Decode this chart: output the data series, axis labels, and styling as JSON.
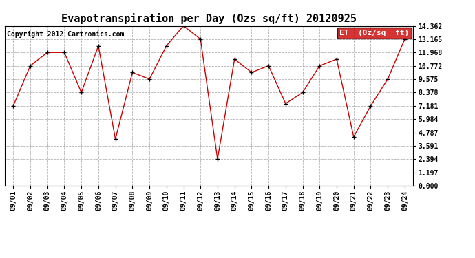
{
  "title": "Evapotranspiration per Day (Ozs sq/ft) 20120925",
  "copyright": "Copyright 2012 Cartronics.com",
  "legend_label": "ET  (0z/sq  ft)",
  "dates": [
    "09/01",
    "09/02",
    "09/03",
    "09/04",
    "09/05",
    "09/06",
    "09/07",
    "09/08",
    "09/09",
    "09/10",
    "09/11",
    "09/12",
    "09/13",
    "09/14",
    "09/15",
    "09/16",
    "09/17",
    "09/18",
    "09/19",
    "09/20",
    "09/21",
    "09/22",
    "09/23",
    "09/24"
  ],
  "values": [
    7.181,
    10.772,
    11.968,
    11.968,
    8.378,
    12.565,
    4.19,
    10.175,
    9.575,
    12.565,
    14.362,
    13.165,
    2.394,
    11.37,
    10.175,
    10.772,
    7.38,
    8.378,
    10.772,
    11.37,
    4.39,
    7.181,
    9.575,
    13.165
  ],
  "ylim": [
    0,
    14.362
  ],
  "yticks": [
    0.0,
    1.197,
    2.394,
    3.591,
    4.787,
    5.984,
    7.181,
    8.378,
    9.575,
    10.772,
    11.968,
    13.165,
    14.362
  ],
  "line_color": "#cc0000",
  "marker_color": "black",
  "background_color": "#ffffff",
  "plot_bg_color": "#ffffff",
  "grid_color": "#aaaaaa",
  "title_fontsize": 11,
  "copyright_fontsize": 7,
  "tick_fontsize": 7,
  "legend_bg_color": "#cc0000",
  "legend_text_color": "#ffffff",
  "legend_fontsize": 8
}
